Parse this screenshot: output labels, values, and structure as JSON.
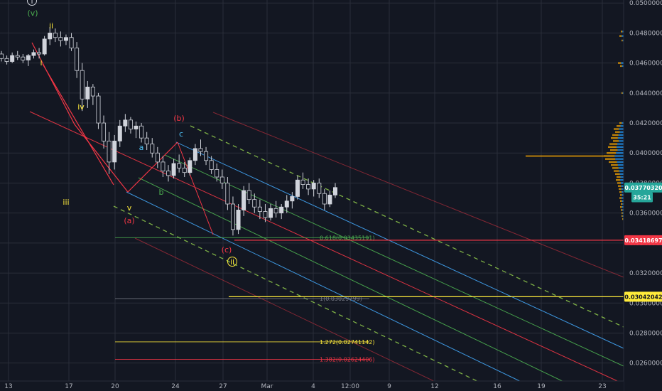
{
  "chart_data": {
    "type": "candlestick",
    "symbol": "",
    "y_axis": {
      "scale": "linear",
      "range": [
        0.0248,
        0.0502
      ],
      "tick_values": [
        0.05,
        0.048,
        0.046,
        0.044,
        0.042,
        0.04,
        0.038,
        0.036,
        0.034,
        0.032,
        0.03,
        0.028,
        0.026
      ],
      "tick_labels": [
        "0.05000000",
        "0.04800000",
        "0.04600000",
        "0.04400000",
        "0.04200000",
        "0.04000000",
        "0.03800000",
        "0.03600000",
        "0.03400000",
        "0.03200000",
        "0.03000000",
        "0.02800000",
        "0.02600000"
      ]
    },
    "x_axis": {
      "tick_labels": [
        "13",
        "17",
        "20",
        "24",
        "27",
        "Mar",
        "4",
        "12:00",
        "9",
        "12",
        "16",
        "19",
        "23"
      ]
    },
    "price_badges": [
      {
        "label": "0.03770320",
        "value": 0.0377,
        "color": "#26a69a",
        "text_color": "#ffffff"
      },
      {
        "label": "35:21",
        "value": 0.03705,
        "color": "#26a69a",
        "text_color": "#ffffff"
      },
      {
        "label": "0.03418697",
        "value": 0.034187,
        "color": "#f23645",
        "text_color": "#ffffff"
      },
      {
        "label": "0.03042042",
        "value": 0.03042,
        "color": "#ffeb3b",
        "text_color": "#131722"
      }
    ],
    "horizontal_lines": [
      {
        "value": 0.034187,
        "color": "#f23645"
      },
      {
        "value": 0.03042,
        "color": "#ffeb3b"
      }
    ],
    "fib_levels": [
      {
        "label": "0.618(0.03435191)",
        "value": 0.034352,
        "color": "#4caf50"
      },
      {
        "label": "1(0.03029799)",
        "value": 0.030298,
        "color": "#787b86"
      },
      {
        "label": "1.272(0.02741142)",
        "value": 0.027411,
        "color": "#ffeb3b"
      },
      {
        "label": "1.382(0.02624406)",
        "value": 0.026244,
        "color": "#f23645"
      }
    ],
    "wave_labels": [
      {
        "text": "i",
        "color": "#ffeb3b",
        "circled": true
      },
      {
        "text": "(v)",
        "color": "#4caf50",
        "circled": false
      },
      {
        "text": "ii",
        "color": "#ffeb3b",
        "circled": false
      },
      {
        "text": "i",
        "color": "#ffeb3b",
        "circled": false
      },
      {
        "text": "iv",
        "color": "#ffeb3b",
        "circled": false
      },
      {
        "text": "iii",
        "color": "#ffeb3b",
        "circled": false
      },
      {
        "text": "v",
        "color": "#ffeb3b",
        "circled": false
      },
      {
        "text": "(a)",
        "color": "#f23645",
        "circled": false
      },
      {
        "text": "a",
        "color": "#4fc3f7",
        "circled": false
      },
      {
        "text": "b",
        "color": "#4caf50",
        "circled": false
      },
      {
        "text": "(b)",
        "color": "#f23645",
        "circled": false
      },
      {
        "text": "c",
        "color": "#4fc3f7",
        "circled": false
      },
      {
        "text": "(c)",
        "color": "#f23645",
        "circled": false
      },
      {
        "text": "ii",
        "color": "#ffeb3b",
        "circled": true
      }
    ],
    "series": [
      {
        "name": "",
        "style": "candles",
        "points": [
          [
            0.0466,
            0.0468,
            0.0461,
            0.0463
          ],
          [
            0.0463,
            0.0465,
            0.0459,
            0.0461
          ],
          [
            0.0461,
            0.0467,
            0.046,
            0.0465
          ],
          [
            0.0465,
            0.0468,
            0.0462,
            0.0464
          ],
          [
            0.0464,
            0.0466,
            0.046,
            0.0462
          ],
          [
            0.0462,
            0.0466,
            0.0458,
            0.0465
          ],
          [
            0.0465,
            0.0469,
            0.0463,
            0.0467
          ],
          [
            0.0467,
            0.047,
            0.0463,
            0.0466
          ],
          [
            0.0466,
            0.0478,
            0.0465,
            0.0476
          ],
          [
            0.0476,
            0.0484,
            0.0472,
            0.048
          ],
          [
            0.048,
            0.0483,
            0.0474,
            0.0477
          ],
          [
            0.0477,
            0.0481,
            0.0471,
            0.0475
          ],
          [
            0.0475,
            0.0479,
            0.0472,
            0.0477
          ],
          [
            0.0477,
            0.048,
            0.0468,
            0.047
          ],
          [
            0.047,
            0.0474,
            0.045,
            0.0455
          ],
          [
            0.0455,
            0.046,
            0.0428,
            0.0436
          ],
          [
            0.0436,
            0.0448,
            0.043,
            0.0444
          ],
          [
            0.0444,
            0.0446,
            0.0432,
            0.0438
          ],
          [
            0.0438,
            0.044,
            0.0416,
            0.042
          ],
          [
            0.042,
            0.0425,
            0.0403,
            0.0408
          ],
          [
            0.0408,
            0.0414,
            0.0386,
            0.0394
          ],
          [
            0.0394,
            0.0412,
            0.0389,
            0.0408
          ],
          [
            0.0408,
            0.0422,
            0.0404,
            0.0418
          ],
          [
            0.0418,
            0.0426,
            0.0414,
            0.0422
          ],
          [
            0.0422,
            0.0424,
            0.0413,
            0.0416
          ],
          [
            0.0416,
            0.0421,
            0.041,
            0.0418
          ],
          [
            0.0418,
            0.042,
            0.0407,
            0.041
          ],
          [
            0.041,
            0.0414,
            0.0402,
            0.0406
          ],
          [
            0.0406,
            0.041,
            0.0397,
            0.04
          ],
          [
            0.04,
            0.0404,
            0.039,
            0.0394
          ],
          [
            0.0394,
            0.0398,
            0.0384,
            0.0388
          ],
          [
            0.0388,
            0.0392,
            0.0381,
            0.0385
          ],
          [
            0.0385,
            0.0396,
            0.0383,
            0.0393
          ],
          [
            0.0393,
            0.0399,
            0.0387,
            0.039
          ],
          [
            0.039,
            0.0394,
            0.0384,
            0.0387
          ],
          [
            0.0387,
            0.0397,
            0.0385,
            0.0395
          ],
          [
            0.0395,
            0.0406,
            0.0392,
            0.0403
          ],
          [
            0.0403,
            0.0409,
            0.0398,
            0.0401
          ],
          [
            0.0401,
            0.0404,
            0.0392,
            0.0395
          ],
          [
            0.0395,
            0.0398,
            0.0386,
            0.0389
          ],
          [
            0.0389,
            0.0393,
            0.0381,
            0.0384
          ],
          [
            0.0384,
            0.0389,
            0.0376,
            0.038
          ],
          [
            0.038,
            0.0384,
            0.0362,
            0.0366
          ],
          [
            0.0366,
            0.0371,
            0.0345,
            0.0349
          ],
          [
            0.0349,
            0.0366,
            0.0346,
            0.0362
          ],
          [
            0.0362,
            0.0378,
            0.0358,
            0.0375
          ],
          [
            0.0375,
            0.038,
            0.0366,
            0.0369
          ],
          [
            0.0369,
            0.0373,
            0.036,
            0.0364
          ],
          [
            0.0364,
            0.0369,
            0.0356,
            0.0361
          ],
          [
            0.0361,
            0.0366,
            0.0354,
            0.0357
          ],
          [
            0.0357,
            0.0366,
            0.0355,
            0.0363
          ],
          [
            0.0363,
            0.0368,
            0.0357,
            0.036
          ],
          [
            0.036,
            0.0366,
            0.0356,
            0.0364
          ],
          [
            0.0364,
            0.0372,
            0.036,
            0.0368
          ],
          [
            0.0368,
            0.0374,
            0.0363,
            0.0371
          ],
          [
            0.0371,
            0.0385,
            0.0369,
            0.0382
          ],
          [
            0.0382,
            0.0387,
            0.0376,
            0.0379
          ],
          [
            0.0379,
            0.0383,
            0.0372,
            0.0376
          ],
          [
            0.0376,
            0.0382,
            0.0371,
            0.038
          ],
          [
            0.038,
            0.0383,
            0.037,
            0.0373
          ],
          [
            0.0373,
            0.0376,
            0.0362,
            0.0366
          ],
          [
            0.0366,
            0.0375,
            0.0364,
            0.0372
          ],
          [
            0.0372,
            0.038,
            0.037,
            0.0377
          ]
        ]
      }
    ],
    "pitchfork_lines": [
      {
        "role": "upper-outer",
        "color": "#f23645",
        "style": "solid"
      },
      {
        "role": "upper-dashed",
        "color": "#8bc34a",
        "style": "dashed"
      },
      {
        "role": "upper-blue",
        "color": "#42a5f5",
        "style": "solid"
      },
      {
        "role": "upper-green",
        "color": "#4caf50",
        "style": "solid"
      },
      {
        "role": "median",
        "color": "#f23645",
        "style": "solid"
      },
      {
        "role": "lower-green",
        "color": "#4caf50",
        "style": "solid"
      },
      {
        "role": "lower-blue",
        "color": "#42a5f5",
        "style": "solid"
      },
      {
        "role": "lower-dashed",
        "color": "#8bc34a",
        "style": "dashed"
      },
      {
        "role": "lower-outer",
        "color": "#f23645",
        "style": "solid"
      }
    ],
    "grid": true,
    "volume_profile": true,
    "colors": {
      "background": "#131722",
      "grid": "#2a2e39",
      "up": "#d1d4dc",
      "down": "#d1d4dc",
      "axis_text": "#b2b5be",
      "profile_blue": "#2196f3",
      "profile_orange": "#f7a600"
    }
  }
}
